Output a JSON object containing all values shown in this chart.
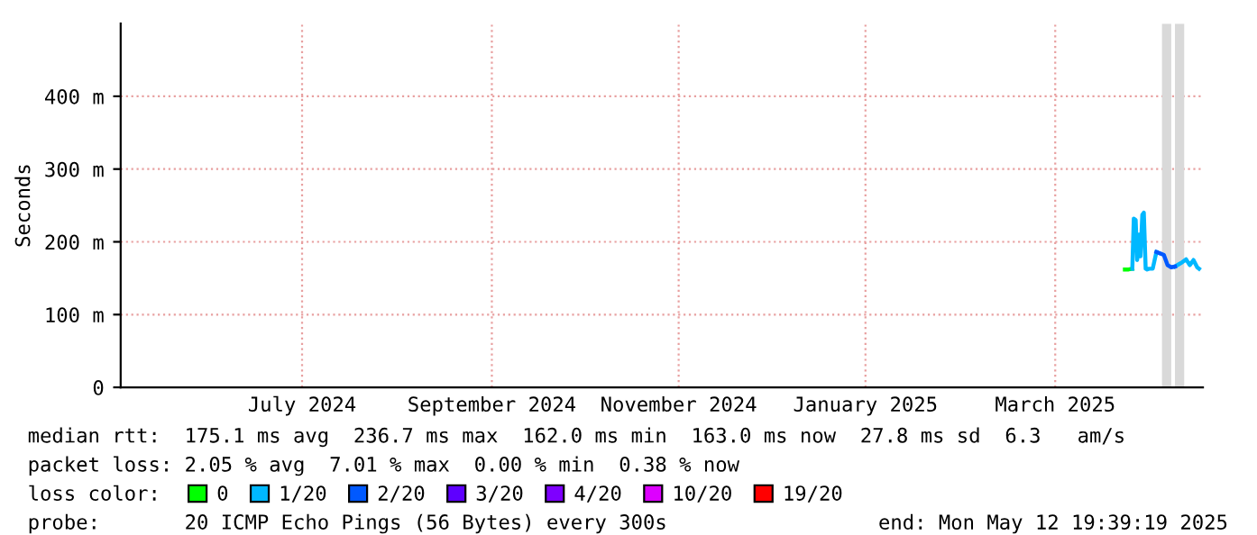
{
  "chart_data": {
    "type": "line",
    "ylabel": "Seconds",
    "x": [
      "2025-04-16T12:00",
      "2025-04-17T18:00",
      "2025-04-19T00:00",
      "2025-04-19T12:00",
      "2025-04-20T03:00",
      "2025-04-20T15:00",
      "2025-04-21T06:00",
      "2025-04-21T18:00",
      "2025-04-22T09:00",
      "2025-04-22T21:00",
      "2025-04-23T12:00",
      "2025-04-24T00:00",
      "2025-04-24T15:00",
      "2025-04-25T21:00",
      "2025-04-27T03:00",
      "2025-04-28T09:00",
      "2025-04-29T15:00",
      "2025-04-30T21:00",
      "2025-05-02T03:00",
      "2025-05-03T09:00",
      "2025-05-04T15:00",
      "2025-05-05T21:00",
      "2025-05-07T03:00",
      "2025-05-08T09:00",
      "2025-05-09T15:00",
      "2025-05-10T21:00",
      "2025-05-11T12:00"
    ],
    "series": [
      {
        "name": "0",
        "color": "#00ff00",
        "values": [
          162,
          162,
          163,
          null,
          null,
          null,
          null,
          null,
          null,
          null,
          null,
          null,
          null,
          null,
          null,
          null,
          null,
          null,
          null,
          null,
          null,
          null,
          null,
          null,
          null,
          null,
          null
        ]
      },
      {
        "name": "1/20",
        "color": "#00b8ff",
        "values": [
          null,
          null,
          163,
          232,
          230,
          175,
          210,
          180,
          237,
          240,
          163,
          162,
          163,
          163,
          186,
          null,
          null,
          null,
          null,
          166,
          169,
          172,
          176,
          168,
          175,
          165,
          163
        ]
      },
      {
        "name": "2/20",
        "color": "#0059ff",
        "values": [
          null,
          null,
          null,
          null,
          null,
          null,
          null,
          null,
          null,
          null,
          null,
          null,
          null,
          null,
          186,
          184,
          182,
          168,
          165,
          166,
          null,
          null,
          null,
          null,
          null,
          null,
          null
        ]
      },
      {
        "name": "3/20",
        "color": "#5e00ff",
        "values": [
          null,
          null,
          null,
          null,
          null,
          null,
          null,
          null,
          null,
          null,
          null,
          null,
          null,
          null,
          null,
          null,
          null,
          null,
          null,
          null,
          null,
          null,
          null,
          null,
          null,
          null,
          null
        ]
      },
      {
        "name": "4/20",
        "color": "#7e00ff",
        "values": [
          null,
          null,
          null,
          null,
          null,
          null,
          null,
          null,
          null,
          null,
          null,
          null,
          null,
          null,
          null,
          null,
          null,
          null,
          null,
          null,
          null,
          null,
          null,
          null,
          null,
          null,
          null
        ]
      },
      {
        "name": "10/20",
        "color": "#dd00ff",
        "values": [
          null,
          null,
          null,
          null,
          null,
          null,
          null,
          null,
          null,
          null,
          null,
          null,
          null,
          null,
          null,
          null,
          null,
          null,
          null,
          null,
          null,
          null,
          null,
          null,
          null,
          null,
          null
        ]
      },
      {
        "name": "19/20",
        "color": "#ff0000",
        "values": [
          null,
          null,
          null,
          null,
          null,
          null,
          null,
          null,
          null,
          null,
          null,
          null,
          null,
          null,
          null,
          null,
          null,
          null,
          null,
          null,
          null,
          null,
          null,
          null,
          null,
          null,
          null
        ]
      }
    ],
    "legend_title": "loss color:",
    "legend": "bottom",
    "bands": [
      {
        "axis": "x",
        "from": "2025-04-29T00:00",
        "to": "2025-05-02T03:00",
        "color": "#d9d9d9"
      },
      {
        "axis": "x",
        "from": "2025-05-03T09:00",
        "to": "2025-05-06T12:00",
        "color": "#d9d9d9"
      }
    ],
    "xlim": [
      "2024-05-12T19:39",
      "2025-05-12T19:39"
    ],
    "xticks": [
      {
        "value": "2024-07-13",
        "label": "July 2024"
      },
      {
        "value": "2024-09-15",
        "label": "September 2024"
      },
      {
        "value": "2024-11-17",
        "label": "November 2024"
      },
      {
        "value": "2025-01-19",
        "label": "January 2025"
      },
      {
        "value": "2025-03-24",
        "label": "March 2025"
      }
    ],
    "ylim": [
      0,
      500
    ],
    "yticks": [
      0,
      {
        "value": 100,
        "label": "100 m"
      },
      {
        "value": 200,
        "label": "200 m"
      },
      {
        "value": 300,
        "label": "300 m"
      },
      {
        "value": 400,
        "label": "400 m"
      }
    ],
    "grid": true,
    "line_style": "solid",
    "marker": "none",
    "annotations": [
      "median rtt:  175.1 ms avg  236.7 ms max  162.0 ms min  163.0 ms now  27.8 ms sd  6.3   am/s",
      "packet loss: 2.05 % avg  7.01 % max  0.00 % min  0.38 % now",
      "probe:       20 ICMP Echo Pings (56 Bytes) every 300s",
      "end: Mon May 12 19:39:19 2025"
    ]
  }
}
